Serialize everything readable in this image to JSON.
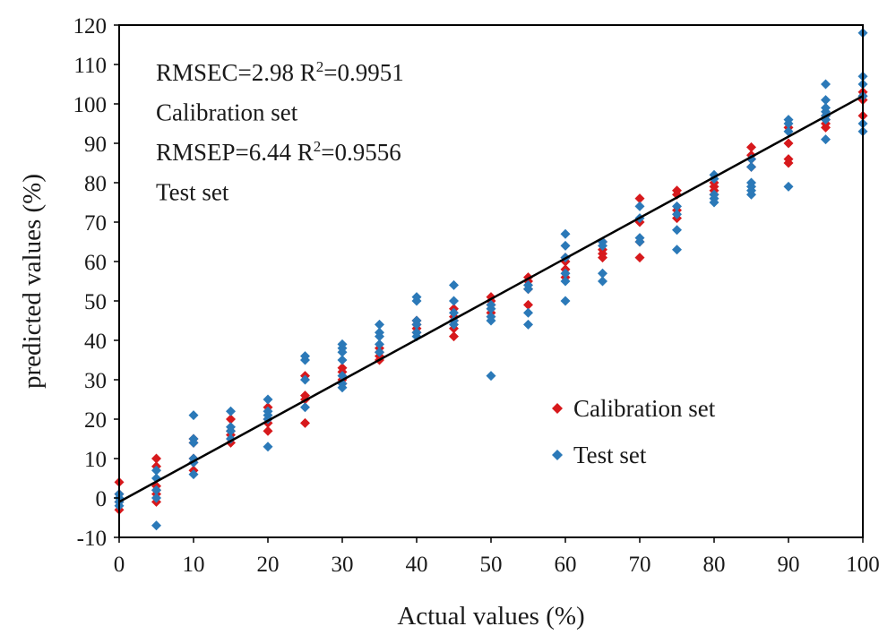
{
  "chart_data": {
    "type": "scatter",
    "xlabel": "Actual values (%)",
    "ylabel": "predicted values (%)",
    "xlim": [
      0,
      100
    ],
    "ylim": [
      -10,
      120
    ],
    "x_ticks": [
      "0",
      "10",
      "20",
      "30",
      "40",
      "50",
      "60",
      "70",
      "80",
      "90",
      "100"
    ],
    "y_ticks": [
      "-10",
      "0",
      "10",
      "20",
      "30",
      "40",
      "50",
      "60",
      "70",
      "80",
      "90",
      "100",
      "110",
      "120"
    ],
    "grid": false,
    "legend_position": "lower-right",
    "annotations": [
      {
        "line": 0,
        "text": "RMSEC=2.98  R",
        "sup": "2",
        "after": "=0.9951"
      },
      {
        "line": 1,
        "text": "Calibration set",
        "sup": "",
        "after": ""
      },
      {
        "line": 2,
        "text": "RMSEP=6.44  R",
        "sup": "2",
        "after": "=0.9556"
      },
      {
        "line": 3,
        "text": "Test set",
        "sup": "",
        "after": ""
      }
    ],
    "fit_line": {
      "x": [
        0,
        100
      ],
      "y": [
        -1,
        102
      ]
    },
    "series": [
      {
        "name": "Calibration set",
        "color": "#d7191c",
        "points": [
          [
            0,
            4
          ],
          [
            0,
            1
          ],
          [
            0,
            -1
          ],
          [
            0,
            -3
          ],
          [
            5,
            10
          ],
          [
            5,
            8
          ],
          [
            5,
            3
          ],
          [
            5,
            2
          ],
          [
            5,
            1
          ],
          [
            5,
            -1
          ],
          [
            10,
            15
          ],
          [
            10,
            14
          ],
          [
            10,
            10
          ],
          [
            10,
            9
          ],
          [
            10,
            7
          ],
          [
            15,
            20
          ],
          [
            15,
            17
          ],
          [
            15,
            16
          ],
          [
            15,
            14
          ],
          [
            20,
            23
          ],
          [
            20,
            20
          ],
          [
            20,
            19
          ],
          [
            20,
            17
          ],
          [
            25,
            31
          ],
          [
            25,
            26
          ],
          [
            25,
            25
          ],
          [
            25,
            19
          ],
          [
            30,
            33
          ],
          [
            30,
            32
          ],
          [
            30,
            30
          ],
          [
            30,
            29
          ],
          [
            35,
            38
          ],
          [
            35,
            37
          ],
          [
            35,
            36
          ],
          [
            35,
            35
          ],
          [
            40,
            45
          ],
          [
            40,
            44
          ],
          [
            40,
            43
          ],
          [
            40,
            42
          ],
          [
            45,
            48
          ],
          [
            45,
            46
          ],
          [
            45,
            45
          ],
          [
            45,
            43
          ],
          [
            45,
            41
          ],
          [
            50,
            51
          ],
          [
            50,
            50
          ],
          [
            50,
            49
          ],
          [
            50,
            47
          ],
          [
            55,
            56
          ],
          [
            55,
            55
          ],
          [
            55,
            53
          ],
          [
            55,
            49
          ],
          [
            60,
            61
          ],
          [
            60,
            60
          ],
          [
            60,
            58
          ],
          [
            60,
            56
          ],
          [
            65,
            65
          ],
          [
            65,
            63
          ],
          [
            65,
            62
          ],
          [
            65,
            61
          ],
          [
            70,
            76
          ],
          [
            70,
            70
          ],
          [
            70,
            65
          ],
          [
            70,
            61
          ],
          [
            75,
            78
          ],
          [
            75,
            77
          ],
          [
            75,
            73
          ],
          [
            75,
            71
          ],
          [
            80,
            80
          ],
          [
            80,
            79
          ],
          [
            80,
            78
          ],
          [
            80,
            77
          ],
          [
            85,
            89
          ],
          [
            85,
            87
          ],
          [
            85,
            86
          ],
          [
            85,
            84
          ],
          [
            90,
            94
          ],
          [
            90,
            90
          ],
          [
            90,
            86
          ],
          [
            90,
            85
          ],
          [
            95,
            97
          ],
          [
            95,
            96
          ],
          [
            95,
            95
          ],
          [
            95,
            94
          ],
          [
            100,
            103
          ],
          [
            100,
            102
          ],
          [
            100,
            101
          ],
          [
            100,
            97
          ]
        ]
      },
      {
        "name": "Test set",
        "color": "#2b79b8",
        "points": [
          [
            0,
            1
          ],
          [
            0,
            0
          ],
          [
            0,
            -1
          ],
          [
            0,
            -2
          ],
          [
            5,
            7
          ],
          [
            5,
            5
          ],
          [
            5,
            2
          ],
          [
            5,
            0
          ],
          [
            5,
            -7
          ],
          [
            10,
            21
          ],
          [
            10,
            15
          ],
          [
            10,
            14
          ],
          [
            10,
            10
          ],
          [
            10,
            9
          ],
          [
            10,
            6
          ],
          [
            15,
            22
          ],
          [
            15,
            18
          ],
          [
            15,
            17
          ],
          [
            15,
            15
          ],
          [
            20,
            25
          ],
          [
            20,
            22
          ],
          [
            20,
            21
          ],
          [
            20,
            20
          ],
          [
            20,
            13
          ],
          [
            25,
            36
          ],
          [
            25,
            35
          ],
          [
            25,
            30
          ],
          [
            25,
            23
          ],
          [
            30,
            39
          ],
          [
            30,
            38
          ],
          [
            30,
            37
          ],
          [
            30,
            35
          ],
          [
            30,
            31
          ],
          [
            30,
            29
          ],
          [
            30,
            28
          ],
          [
            35,
            44
          ],
          [
            35,
            42
          ],
          [
            35,
            41
          ],
          [
            35,
            39
          ],
          [
            35,
            37
          ],
          [
            40,
            51
          ],
          [
            40,
            50
          ],
          [
            40,
            45
          ],
          [
            40,
            44
          ],
          [
            40,
            42
          ],
          [
            40,
            41
          ],
          [
            45,
            54
          ],
          [
            45,
            50
          ],
          [
            45,
            47
          ],
          [
            45,
            45
          ],
          [
            45,
            44
          ],
          [
            50,
            49
          ],
          [
            50,
            48
          ],
          [
            50,
            46
          ],
          [
            50,
            45
          ],
          [
            50,
            31
          ],
          [
            55,
            54
          ],
          [
            55,
            53
          ],
          [
            55,
            47
          ],
          [
            55,
            44
          ],
          [
            60,
            67
          ],
          [
            60,
            64
          ],
          [
            60,
            61
          ],
          [
            60,
            57
          ],
          [
            60,
            55
          ],
          [
            60,
            50
          ],
          [
            65,
            65
          ],
          [
            65,
            64
          ],
          [
            65,
            57
          ],
          [
            65,
            55
          ],
          [
            70,
            74
          ],
          [
            70,
            71
          ],
          [
            70,
            66
          ],
          [
            70,
            65
          ],
          [
            75,
            74
          ],
          [
            75,
            72
          ],
          [
            75,
            68
          ],
          [
            75,
            63
          ],
          [
            80,
            82
          ],
          [
            80,
            81
          ],
          [
            80,
            77
          ],
          [
            80,
            76
          ],
          [
            80,
            75
          ],
          [
            85,
            86
          ],
          [
            85,
            84
          ],
          [
            85,
            80
          ],
          [
            85,
            79
          ],
          [
            85,
            78
          ],
          [
            85,
            77
          ],
          [
            90,
            96
          ],
          [
            90,
            95
          ],
          [
            90,
            93
          ],
          [
            90,
            79
          ],
          [
            95,
            105
          ],
          [
            95,
            101
          ],
          [
            95,
            99
          ],
          [
            95,
            98
          ],
          [
            95,
            97
          ],
          [
            95,
            96
          ],
          [
            95,
            91
          ],
          [
            100,
            118
          ],
          [
            100,
            107
          ],
          [
            100,
            105
          ],
          [
            100,
            102
          ],
          [
            100,
            95
          ],
          [
            100,
            93
          ]
        ]
      }
    ]
  }
}
